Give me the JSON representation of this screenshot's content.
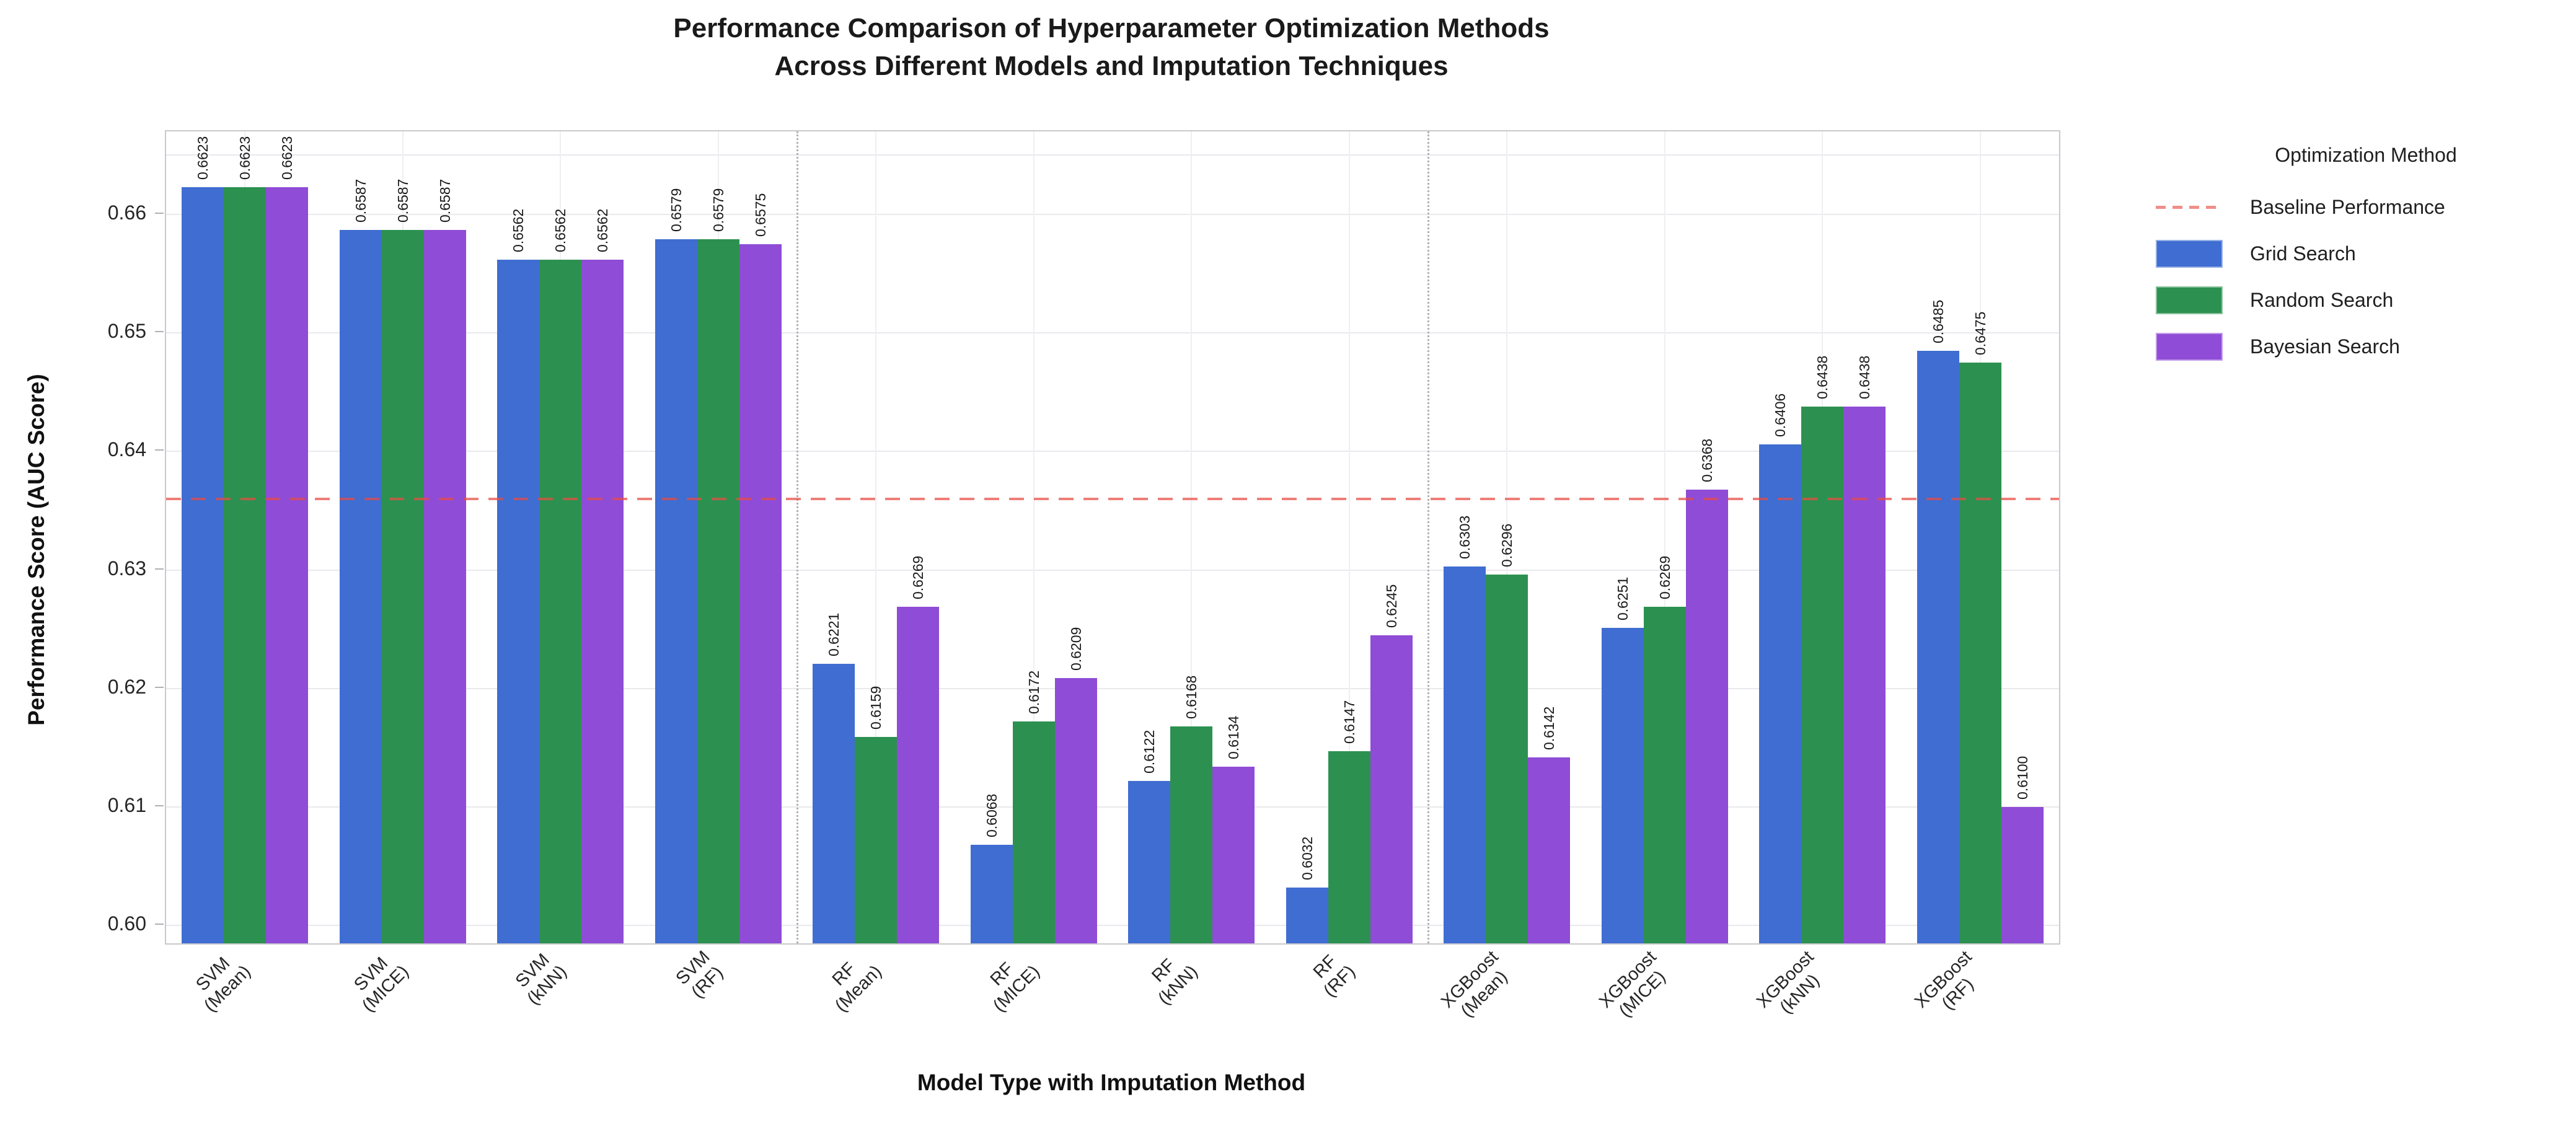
{
  "chart_data": {
    "type": "bar",
    "title": "Performance Comparison of Hyperparameter Optimization Methods Across Different Models and Imputation Techniques",
    "title_lines": [
      "Performance Comparison of Hyperparameter Optimization Methods",
      "Across Different Models and Imputation Techniques"
    ],
    "xlabel": "Model Type with Imputation Method",
    "ylabel": "Performance Score (AUC Score)",
    "categories": [
      "SVM\n(Mean)",
      "SVM\n(MICE)",
      "SVM\n(kNN)",
      "SVM\n(RF)",
      "RF\n(Mean)",
      "RF\n(MICE)",
      "RF\n(kNN)",
      "RF\n(RF)",
      "XGBoost\n(Mean)",
      "XGBoost\n(MICE)",
      "XGBoost\n(kNN)",
      "XGBoost\n(RF)"
    ],
    "series": [
      {
        "name": "Grid Search",
        "color": "#3F6DD1",
        "values": [
          0.6623,
          0.6587,
          0.6562,
          0.6579,
          0.6221,
          0.6068,
          0.6122,
          0.6032,
          0.6303,
          0.6251,
          0.6406,
          0.6485
        ]
      },
      {
        "name": "Random Search",
        "color": "#2C9150",
        "values": [
          0.6623,
          0.6587,
          0.6562,
          0.6579,
          0.6159,
          0.6172,
          0.6168,
          0.6147,
          0.6296,
          0.6269,
          0.6438,
          0.6475
        ]
      },
      {
        "name": "Bayesian Search",
        "color": "#8F4CD6",
        "values": [
          0.6623,
          0.6587,
          0.6562,
          0.6575,
          0.6269,
          0.6209,
          0.6134,
          0.6245,
          0.6142,
          0.6368,
          0.6438,
          0.61
        ]
      }
    ],
    "baseline": {
      "label": "Baseline Performance",
      "value": 0.636,
      "color": "#E84B43"
    },
    "legend": {
      "title": "Optimization Method",
      "position": "right-outside"
    },
    "ylim": [
      0.5985,
      0.667
    ],
    "yticks": [
      {
        "value": 0.6,
        "label": "0.60"
      },
      {
        "value": 0.61,
        "label": "0.61"
      },
      {
        "value": 0.62,
        "label": "0.62"
      },
      {
        "value": 0.63,
        "label": "0.63"
      },
      {
        "value": 0.64,
        "label": "0.64"
      },
      {
        "value": 0.65,
        "label": "0.65"
      },
      {
        "value": 0.66,
        "label": "0.66"
      },
      {
        "value": 0.665,
        "label": ""
      }
    ],
    "grid": true,
    "separators_after": [
      3,
      7
    ],
    "bar_value_label_decimals": 4
  }
}
